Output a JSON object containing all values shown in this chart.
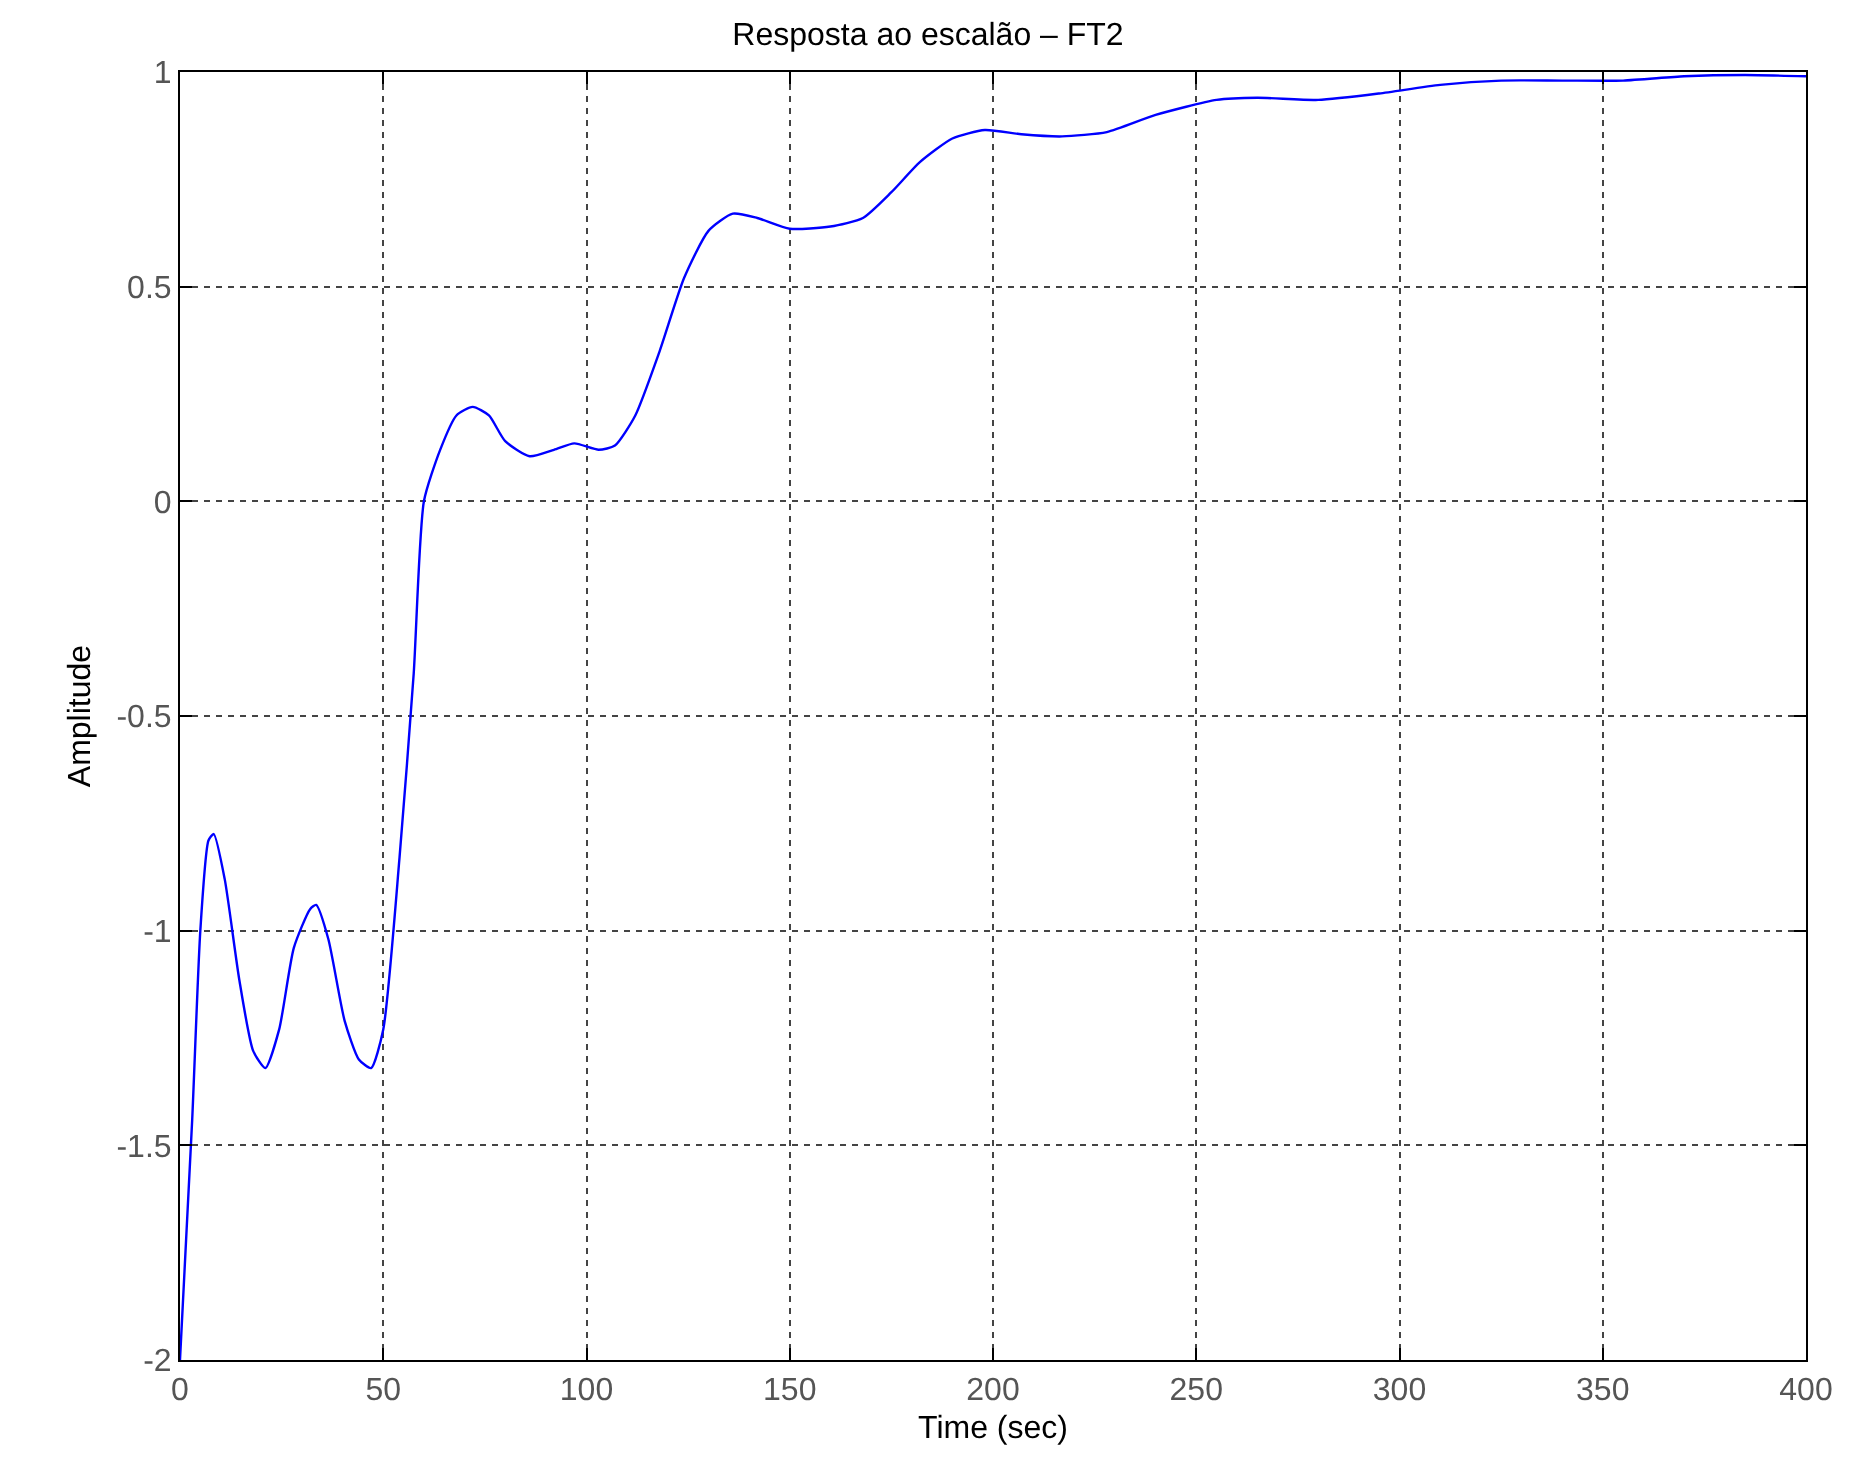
{
  "chart_data": {
    "type": "line",
    "title": "Resposta ao escalão – FT2",
    "xlabel": "Time (sec)",
    "ylabel": "Amplitude",
    "xlim": [
      0,
      400
    ],
    "xticks": [
      0,
      50,
      100,
      150,
      200,
      250,
      300,
      350,
      400
    ],
    "ylim": [
      -2,
      1
    ],
    "yticks": [
      -2,
      -1.5,
      -1,
      -0.5,
      0,
      0.5,
      1
    ],
    "grid": true,
    "series": [
      {
        "color": "#0000ff",
        "x": [
          0,
          3,
          5,
          7,
          8.3,
          11,
          14.6,
          18,
          21,
          24.4,
          28,
          32,
          33.5,
          36.5,
          40.5,
          44,
          47,
          50,
          54,
          57.5,
          60,
          64,
          68,
          72,
          76,
          80,
          86,
          92,
          97,
          103,
          107,
          112,
          118,
          124,
          130,
          136,
          142,
          150,
          160,
          168,
          175,
          182,
          190,
          198,
          207,
          217,
          228,
          240,
          255,
          265,
          280,
          295,
          310,
          325,
          340,
          355,
          370,
          385,
          400
        ],
        "values": [
          -2,
          -1.44,
          -1.0,
          -0.79,
          -0.775,
          -0.88,
          -1.115,
          -1.28,
          -1.32,
          -1.23,
          -1.04,
          -0.95,
          -0.94,
          -1.02,
          -1.21,
          -1.3,
          -1.32,
          -1.23,
          -0.83,
          -0.4,
          0,
          0.12,
          0.2,
          0.22,
          0.2,
          0.14,
          0.105,
          0.12,
          0.135,
          0.12,
          0.13,
          0.2,
          0.35,
          0.52,
          0.63,
          0.67,
          0.66,
          0.635,
          0.64,
          0.66,
          0.72,
          0.79,
          0.845,
          0.865,
          0.855,
          0.85,
          0.86,
          0.9,
          0.935,
          0.94,
          0.935,
          0.95,
          0.97,
          0.98,
          0.98,
          0.98,
          0.99,
          0.993,
          0.99
        ]
      }
    ]
  }
}
